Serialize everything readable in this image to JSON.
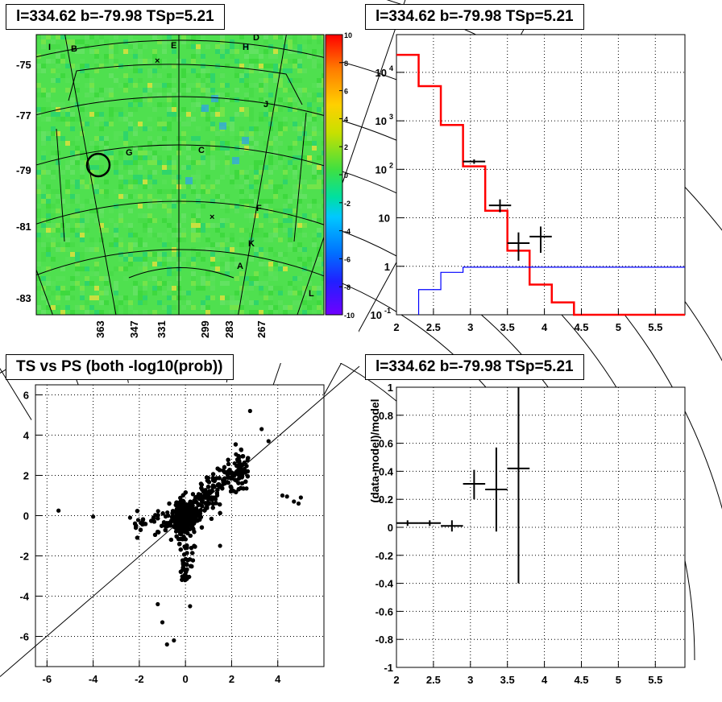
{
  "panels": {
    "skymap": {
      "title": "l=334.62 b=-79.98 TSp=5.21"
    },
    "spectrum": {
      "title": "l=334.62 b=-79.98 TSp=5.21"
    },
    "ts_vs_ps": {
      "title": "TS vs PS (both -log10(prob))"
    },
    "residual": {
      "title": "l=334.62 b=-79.98 TSp=5.21"
    }
  },
  "chart_data": [
    {
      "type": "heatmap",
      "title": "l=334.62 b=-79.98 TSp=5.21",
      "y_ticks": [
        "-75",
        "-77",
        "-79",
        "-81",
        "-83"
      ],
      "x_ticks": [
        "363",
        "347",
        "331",
        "299",
        "283",
        "267"
      ],
      "colorbar": {
        "min": -10,
        "max": 10,
        "ticks": [
          "10",
          "8",
          "6",
          "4",
          "2",
          "0",
          "-2",
          "-4",
          "-6",
          "-8",
          "-10"
        ]
      },
      "region_labels": [
        "I",
        "B",
        "E",
        "D",
        "H",
        "J",
        "G",
        "C",
        "F",
        "K",
        "A",
        "L"
      ],
      "colors": {
        "background": "#4fe04f",
        "cool_spot": "#2fa0f0"
      }
    },
    {
      "type": "histogram",
      "title": "l=334.62 b=-79.98 TSp=5.21",
      "log_y": true,
      "xlim": [
        2.0,
        5.9
      ],
      "ylim": [
        0.1,
        60000
      ],
      "x_ticks": [
        "2",
        "2.5",
        "3",
        "3.5",
        "4",
        "4.5",
        "5",
        "5.5"
      ],
      "y_ticks": [
        "10^4",
        "10^3",
        "10^2",
        "10",
        "1",
        "10^-1"
      ],
      "series": [
        {
          "color": "#ff0000",
          "edges": [
            2.0,
            2.3,
            2.6,
            2.9,
            3.2,
            3.5,
            3.8,
            4.1,
            4.4,
            5.9
          ],
          "values": [
            23000,
            5200,
            820,
            115,
            14,
            2.1,
            0.42,
            0.18,
            0.1
          ]
        },
        {
          "color": "#0000ff",
          "edges": [
            2.3,
            2.6,
            2.9,
            5.9
          ],
          "values": [
            0.33,
            0.75,
            0.96
          ]
        }
      ],
      "points": [
        {
          "x": 3.05,
          "y": 145,
          "xerr": 0.15,
          "ylo": 130,
          "yhi": 160
        },
        {
          "x": 3.4,
          "y": 18,
          "xerr": 0.15,
          "ylo": 13,
          "yhi": 24
        },
        {
          "x": 3.65,
          "y": 3.0,
          "xerr": 0.15,
          "ylo": 1.3,
          "yhi": 5.0
        },
        {
          "x": 3.95,
          "y": 4.1,
          "xerr": 0.15,
          "ylo": 1.9,
          "yhi": 6.6
        }
      ]
    },
    {
      "type": "scatter",
      "title": "TS vs PS (both -log10(prob))",
      "xlim": [
        -6.5,
        6.0
      ],
      "ylim": [
        -7.5,
        6.5
      ],
      "x_ticks": [
        "-6",
        "-4",
        "-2",
        "0",
        "2",
        "4"
      ],
      "y_ticks": [
        "6",
        "4",
        "2",
        "0",
        "-2",
        "-4",
        "-6"
      ],
      "diagonal": true,
      "outliers": [
        [
          -5.5,
          0.25
        ],
        [
          -4.0,
          -0.05
        ],
        [
          5.0,
          0.9
        ],
        [
          4.7,
          0.7
        ],
        [
          4.9,
          0.6
        ],
        [
          4.2,
          1.0
        ],
        [
          4.4,
          0.95
        ],
        [
          2.8,
          5.2
        ],
        [
          3.6,
          3.7
        ],
        [
          3.3,
          4.3
        ],
        [
          -1.0,
          -5.3
        ],
        [
          -0.5,
          -6.2
        ],
        [
          -0.8,
          -6.4
        ],
        [
          -1.2,
          -4.4
        ],
        [
          -2.4,
          -0.1
        ],
        [
          1.5,
          -1.5
        ],
        [
          0.2,
          -4.5
        ]
      ]
    },
    {
      "type": "scatter",
      "title": "l=334.62 b=-79.98 TSp=5.21",
      "ylabel": "(data-model)/model",
      "xlim": [
        2.0,
        5.9
      ],
      "ylim": [
        -1.0,
        1.0
      ],
      "x_ticks": [
        "2",
        "2.5",
        "3",
        "3.5",
        "4",
        "4.5",
        "5",
        "5.5"
      ],
      "y_ticks": [
        "1",
        "0.8",
        "0.6",
        "0.4",
        "0.2",
        "0",
        "-0.2",
        "-0.4",
        "-0.6",
        "-0.8",
        "-1"
      ],
      "points": [
        {
          "x": 2.15,
          "y": 0.03,
          "xerr": 0.15,
          "ylo": 0.01,
          "yhi": 0.05
        },
        {
          "x": 2.45,
          "y": 0.03,
          "xerr": 0.15,
          "ylo": 0.01,
          "yhi": 0.05
        },
        {
          "x": 2.75,
          "y": 0.01,
          "xerr": 0.15,
          "ylo": -0.03,
          "yhi": 0.05
        },
        {
          "x": 3.05,
          "y": 0.31,
          "xerr": 0.15,
          "ylo": 0.2,
          "yhi": 0.41
        },
        {
          "x": 3.35,
          "y": 0.27,
          "xerr": 0.15,
          "ylo": -0.03,
          "yhi": 0.57
        },
        {
          "x": 3.65,
          "y": 0.42,
          "xerr": 0.15,
          "ylo": -0.4,
          "yhi": 1.0
        }
      ]
    }
  ]
}
